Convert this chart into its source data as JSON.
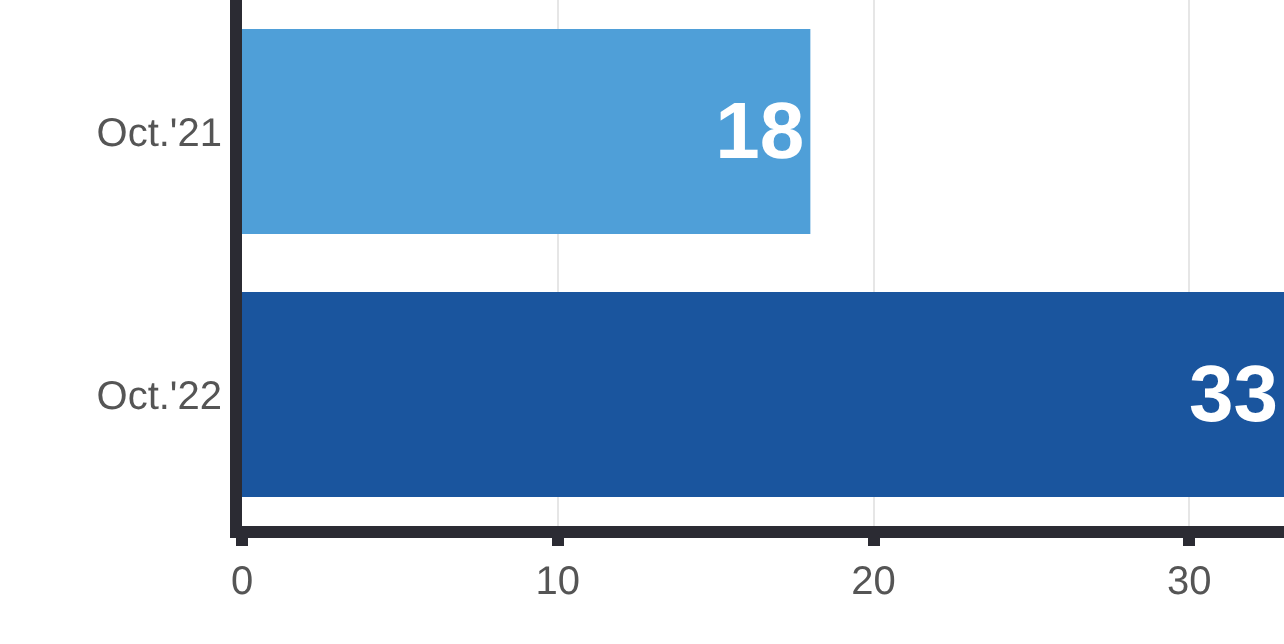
{
  "chart_data": {
    "type": "bar",
    "orientation": "horizontal",
    "categories": [
      "Oct.'21",
      "Oct.'22"
    ],
    "values": [
      18,
      33
    ],
    "colors": [
      "#4f9fd8",
      "#1a559e"
    ],
    "xlim": [
      0,
      33
    ],
    "xticks": [
      0,
      10,
      20,
      30
    ],
    "grid": "x",
    "data_labels": true
  }
}
